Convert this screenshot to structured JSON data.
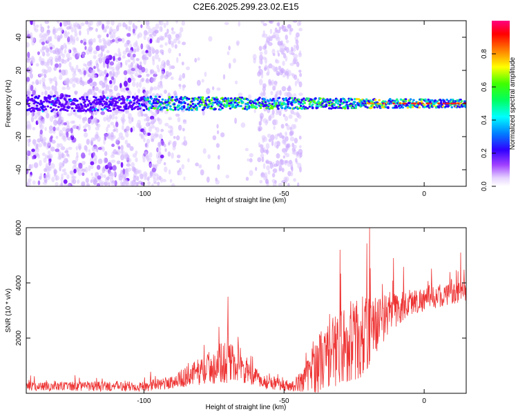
{
  "title": "C2E6.2025.299.23.02.E15",
  "chart_data": [
    {
      "type": "heatmap",
      "name": "spectrogram",
      "xlabel": "Height of straight line (km)",
      "ylabel": "Frequency (Hz)",
      "xlim": [
        -142,
        15
      ],
      "ylim": [
        -50,
        50
      ],
      "xticks": [
        -100,
        -50,
        0
      ],
      "yticks": [
        -40,
        -20,
        0,
        20,
        40
      ],
      "grid": false,
      "signal_band_hz": 0,
      "noise_region_km": [
        -142,
        -93
      ],
      "noise_region_2_km": [
        -59,
        -44
      ],
      "colorbar": {
        "label": "Normalized spectral amplitude",
        "range": [
          0,
          1
        ],
        "ticks": [
          "0.0",
          "0.2",
          "0.4",
          "0.6",
          "0.8"
        ],
        "colormap": "white-purple-blue-cyan-green-yellow-red-magenta"
      }
    },
    {
      "type": "line",
      "name": "snr",
      "xlabel": "Height of straight line (km)",
      "ylabel": "SNR (10 * v/v)",
      "xlim": [
        -142,
        15
      ],
      "ylim": [
        0,
        6000
      ],
      "xticks": [
        -100,
        -50,
        0
      ],
      "yticks": [
        2000,
        4000,
        6000
      ],
      "line_color": "#ee3333",
      "envelope_points": [
        {
          "x": -142,
          "baseline": 250,
          "spread": 300
        },
        {
          "x": -100,
          "baseline": 250,
          "spread": 350
        },
        {
          "x": -90,
          "baseline": 400,
          "spread": 450
        },
        {
          "x": -80,
          "baseline": 800,
          "spread": 900
        },
        {
          "x": -70,
          "baseline": 1200,
          "spread": 1500
        },
        {
          "x": -66,
          "baseline": 900,
          "spread": 900
        },
        {
          "x": -58,
          "baseline": 450,
          "spread": 500
        },
        {
          "x": -47,
          "baseline": 250,
          "spread": 350
        },
        {
          "x": -43,
          "baseline": 500,
          "spread": 800
        },
        {
          "x": -38,
          "baseline": 1100,
          "spread": 2000
        },
        {
          "x": -30,
          "baseline": 1700,
          "spread": 2500
        },
        {
          "x": -22,
          "baseline": 2000,
          "spread": 2800
        },
        {
          "x": -15,
          "baseline": 2700,
          "spread": 1600
        },
        {
          "x": -5,
          "baseline": 3300,
          "spread": 900
        },
        {
          "x": 5,
          "baseline": 3500,
          "spread": 700
        },
        {
          "x": 15,
          "baseline": 3700,
          "spread": 700
        }
      ],
      "peaks": [
        {
          "x": -70,
          "y": 3500
        },
        {
          "x": -30,
          "y": 5200
        },
        {
          "x": -19.5,
          "y": 6000
        },
        {
          "x": -11,
          "y": 4900
        },
        {
          "x": 13,
          "y": 5100
        }
      ]
    }
  ]
}
